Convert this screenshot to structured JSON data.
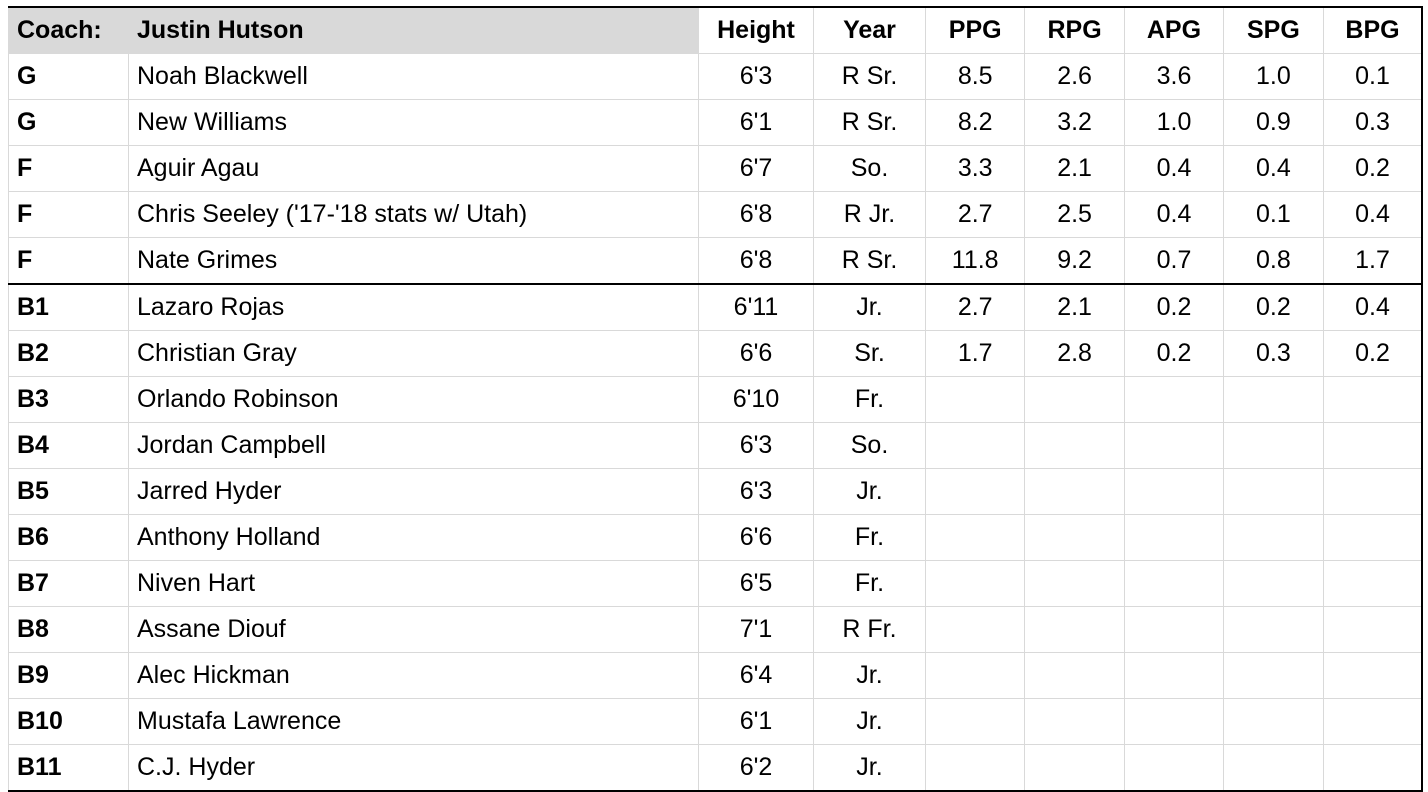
{
  "header": {
    "coach_label": "Coach:",
    "coach_name": "Justin Hutson",
    "columns": [
      "Height",
      "Year",
      "PPG",
      "RPG",
      "APG",
      "SPG",
      "BPG"
    ]
  },
  "starters": [
    {
      "pos": "G",
      "name": "Noah Blackwell",
      "height": "6'3",
      "year": "R Sr.",
      "ppg": "8.5",
      "rpg": "2.6",
      "apg": "3.6",
      "spg": "1.0",
      "bpg": "0.1"
    },
    {
      "pos": "G",
      "name": "New Williams",
      "height": "6'1",
      "year": "R Sr.",
      "ppg": "8.2",
      "rpg": "3.2",
      "apg": "1.0",
      "spg": "0.9",
      "bpg": "0.3"
    },
    {
      "pos": "F",
      "name": "Aguir Agau",
      "height": "6'7",
      "year": "So.",
      "ppg": "3.3",
      "rpg": "2.1",
      "apg": "0.4",
      "spg": "0.4",
      "bpg": "0.2"
    },
    {
      "pos": "F",
      "name": "Chris Seeley ('17-'18 stats w/ Utah)",
      "height": "6'8",
      "year": "R Jr.",
      "ppg": "2.7",
      "rpg": "2.5",
      "apg": "0.4",
      "spg": "0.1",
      "bpg": "0.4"
    },
    {
      "pos": "F",
      "name": "Nate Grimes",
      "height": "6'8",
      "year": "R Sr.",
      "ppg": "11.8",
      "rpg": "9.2",
      "apg": "0.7",
      "spg": "0.8",
      "bpg": "1.7"
    }
  ],
  "bench": [
    {
      "pos": "B1",
      "name": "Lazaro Rojas",
      "height": "6'11",
      "year": "Jr.",
      "ppg": "2.7",
      "rpg": "2.1",
      "apg": "0.2",
      "spg": "0.2",
      "bpg": "0.4"
    },
    {
      "pos": "B2",
      "name": "Christian Gray",
      "height": "6'6",
      "year": "Sr.",
      "ppg": "1.7",
      "rpg": "2.8",
      "apg": "0.2",
      "spg": "0.3",
      "bpg": "0.2"
    },
    {
      "pos": "B3",
      "name": "Orlando Robinson",
      "height": "6'10",
      "year": "Fr.",
      "ppg": "",
      "rpg": "",
      "apg": "",
      "spg": "",
      "bpg": ""
    },
    {
      "pos": "B4",
      "name": "Jordan Campbell",
      "height": "6'3",
      "year": "So.",
      "ppg": "",
      "rpg": "",
      "apg": "",
      "spg": "",
      "bpg": ""
    },
    {
      "pos": "B5",
      "name": "Jarred Hyder",
      "height": "6'3",
      "year": "Jr.",
      "ppg": "",
      "rpg": "",
      "apg": "",
      "spg": "",
      "bpg": ""
    },
    {
      "pos": "B6",
      "name": "Anthony Holland",
      "height": "6'6",
      "year": "Fr.",
      "ppg": "",
      "rpg": "",
      "apg": "",
      "spg": "",
      "bpg": ""
    },
    {
      "pos": "B7",
      "name": "Niven Hart",
      "height": "6'5",
      "year": "Fr.",
      "ppg": "",
      "rpg": "",
      "apg": "",
      "spg": "",
      "bpg": ""
    },
    {
      "pos": "B8",
      "name": "Assane Diouf",
      "height": "7'1",
      "year": "R Fr.",
      "ppg": "",
      "rpg": "",
      "apg": "",
      "spg": "",
      "bpg": ""
    },
    {
      "pos": "B9",
      "name": "Alec Hickman",
      "height": "6'4",
      "year": "Jr.",
      "ppg": "",
      "rpg": "",
      "apg": "",
      "spg": "",
      "bpg": ""
    },
    {
      "pos": "B10",
      "name": "Mustafa Lawrence",
      "height": "6'1",
      "year": "Jr.",
      "ppg": "",
      "rpg": "",
      "apg": "",
      "spg": "",
      "bpg": ""
    },
    {
      "pos": "B11",
      "name": "C.J. Hyder",
      "height": "6'2",
      "year": "Jr.",
      "ppg": "",
      "rpg": "",
      "apg": "",
      "spg": "",
      "bpg": ""
    }
  ]
}
